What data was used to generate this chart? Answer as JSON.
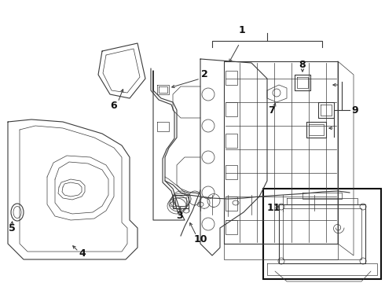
{
  "bg_color": "#ffffff",
  "line_color": "#3a3a3a",
  "label_color": "#111111",
  "figsize": [
    4.9,
    3.6
  ],
  "dpi": 100
}
